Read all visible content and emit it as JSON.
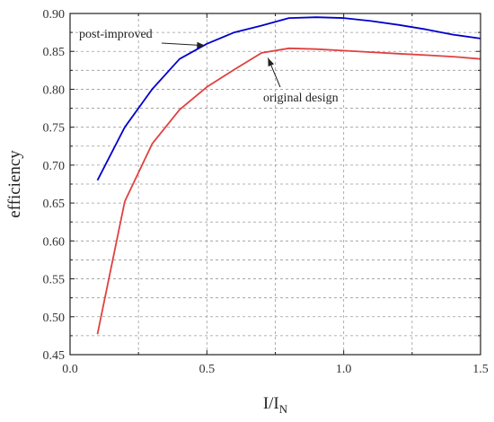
{
  "chart_data": {
    "type": "line",
    "x": [
      0.1,
      0.2,
      0.3,
      0.4,
      0.5,
      0.6,
      0.7,
      0.8,
      0.9,
      1.0,
      1.1,
      1.2,
      1.3,
      1.4,
      1.5
    ],
    "series": [
      {
        "name": "post-improved",
        "color": "#0000cc",
        "x": [
          0.1,
          0.2,
          0.3,
          0.4,
          0.5,
          0.6,
          0.7,
          0.8,
          0.9,
          1.0,
          1.1,
          1.2,
          1.3,
          1.4,
          1.5
        ],
        "values": [
          0.68,
          0.75,
          0.8,
          0.84,
          0.86,
          0.875,
          0.884,
          0.894,
          0.895,
          0.894,
          0.89,
          0.885,
          0.879,
          0.872,
          0.867
        ]
      },
      {
        "name": "original design",
        "color": "#e04040",
        "x": [
          0.1,
          0.2,
          0.3,
          0.4,
          0.5,
          0.6,
          0.7,
          0.8,
          0.9,
          1.0,
          1.1,
          1.2,
          1.3,
          1.4,
          1.5
        ],
        "values": [
          0.477,
          0.652,
          0.728,
          0.773,
          0.803,
          0.826,
          0.848,
          0.854,
          0.853,
          0.851,
          0.849,
          0.847,
          0.845,
          0.843,
          0.84
        ]
      }
    ],
    "xlabel_main": "I/I",
    "xlabel_sub": "N",
    "ylabel": "efficiency",
    "xlim": [
      0.0,
      1.5
    ],
    "ylim": [
      0.45,
      0.9
    ],
    "xticks": [
      "0.0",
      "0.5",
      "1.0",
      "1.5"
    ],
    "yticks": [
      "0.45",
      "0.50",
      "0.55",
      "0.60",
      "0.65",
      "0.70",
      "0.75",
      "0.80",
      "0.85",
      "0.90"
    ],
    "grid": true,
    "annotations": [
      {
        "text": "post-improved",
        "target_x": 0.5,
        "target_y": 0.86
      },
      {
        "text": "original design",
        "target_x": 0.72,
        "target_y": 0.845
      }
    ]
  }
}
